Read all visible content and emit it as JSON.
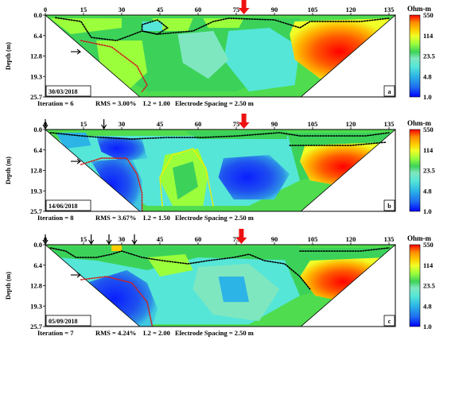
{
  "chart_data": [
    {
      "type": "heatmap",
      "panel_label": "a",
      "date": "30/03/2018",
      "x_ticks": [
        0,
        15,
        30,
        45,
        60,
        75,
        90,
        105,
        120,
        135
      ],
      "y_ticks": [
        "0.0",
        "6.4",
        "12.8",
        "19.3",
        "25.7"
      ],
      "xlim": [
        0,
        137.5
      ],
      "ylim": [
        0,
        25.7
      ],
      "ylabel": "Depth (m)",
      "colorbar_title": "Ohm-m",
      "colorbar_ticks": [
        "550",
        "114",
        "23.5",
        "4.8",
        "1.0"
      ],
      "footer": {
        "iteration": "Iteration = 6",
        "rms": "RMS = 3.00%",
        "l2": "L2 = 1.00",
        "spacing": "Electrode Spacing = 2.50 m"
      },
      "down_arrows_x": [],
      "red_arrow_x": 78,
      "side_arrow_depth": 11.5
    },
    {
      "type": "heatmap",
      "panel_label": "b",
      "date": "14/06/2018",
      "x_ticks": [
        0,
        15,
        30,
        45,
        60,
        75,
        90,
        105,
        120,
        135
      ],
      "y_ticks": [
        "0.0",
        "6.4",
        "12.8",
        "19.3",
        "25.7"
      ],
      "xlim": [
        0,
        137.5
      ],
      "ylim": [
        0,
        25.7
      ],
      "ylabel": "Depth (m)",
      "colorbar_title": "Ohm-m",
      "colorbar_ticks": [
        "550",
        "114",
        "23.5",
        "4.8",
        "1.0"
      ],
      "footer": {
        "iteration": "Iteration = 8",
        "rms": "RMS = 3.67%",
        "l2": "L2 = 1.50",
        "spacing": "Electrode Spacing = 2.50 m"
      },
      "down_arrows_x": [
        0,
        23
      ],
      "red_arrow_x": 78,
      "side_arrow_depth": 10.0
    },
    {
      "type": "heatmap",
      "panel_label": "c",
      "date": "05/09/2018",
      "x_ticks": [
        0,
        15,
        30,
        45,
        60,
        75,
        90,
        105,
        120,
        135
      ],
      "y_ticks": [
        "0.0",
        "6.4",
        "12.8",
        "19.3",
        "25.7"
      ],
      "xlim": [
        0,
        137.5
      ],
      "ylim": [
        0,
        25.7
      ],
      "ylabel": "Depth (m)",
      "colorbar_title": "Ohm-m",
      "colorbar_ticks": [
        "550",
        "114",
        "23.5",
        "4.8",
        "1.0"
      ],
      "footer": {
        "iteration": "Iteration = 7",
        "rms": "RMS = 4.24%",
        "l2": "L2 = 2.00",
        "spacing": "Electrode Spacing = 2.50 m"
      },
      "down_arrows_x": [
        0,
        18,
        25,
        35
      ],
      "red_arrow_x": 77,
      "side_arrow_depth": 9.5
    }
  ],
  "colors": {
    "ramp": [
      "#0000ff",
      "#1e6ef0",
      "#2cb4e6",
      "#55e6d8",
      "#7fe7c0",
      "#3cd25a",
      "#9cff3c",
      "#f0ff28",
      "#ffcc00",
      "#ff8c00",
      "#ff0000",
      "#c80000"
    ],
    "background_green": "#4fdc4f",
    "contour_black": "#000000",
    "contour_red": "#cc2020",
    "contour_yellow": "#f0f000",
    "arrow_red": "#ee1111"
  }
}
